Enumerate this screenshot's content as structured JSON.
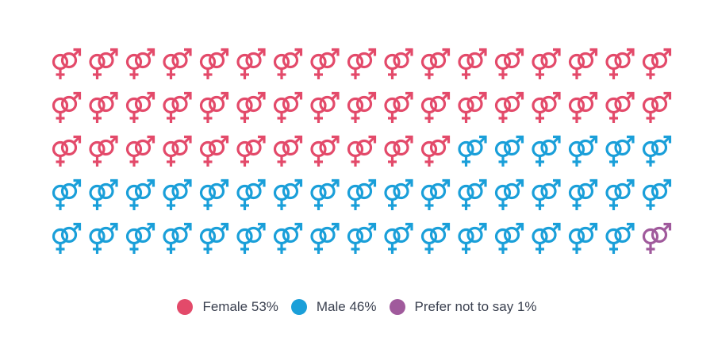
{
  "chart_data": {
    "type": "pictogram",
    "icon": "gender-symbol-icon",
    "rows": 5,
    "columns": 17,
    "series": [
      {
        "name": "Female",
        "percent": 53,
        "count": 45,
        "color": "#e34a6a",
        "label": "Female 53%"
      },
      {
        "name": "Male",
        "percent": 46,
        "count": 39,
        "color": "#1a9fd9",
        "label": "Male 46%"
      },
      {
        "name": "Prefer not to say",
        "percent": 1,
        "count": 1,
        "color": "#a05a9c",
        "label": "Prefer not to say 1%"
      }
    ],
    "legend_position": "bottom-center"
  }
}
